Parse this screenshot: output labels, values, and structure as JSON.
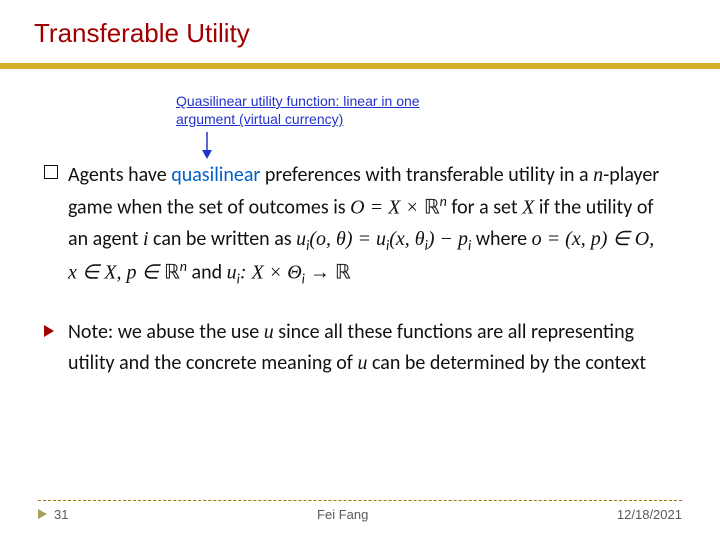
{
  "colors": {
    "title": "#a00000",
    "gold_bar": "#d6af2e",
    "annotation": "#2233cc",
    "quasilinear": "#0060c8",
    "dash": "#b07000",
    "footer_text": "#5a5a5a",
    "background": "#ffffff"
  },
  "title": "Transferable Utility",
  "annotation": "Quasilinear utility function: linear in one\nargument (virtual currency)",
  "arrow": {
    "color": "#2233cc",
    "length": 24,
    "head_size": 6
  },
  "bullets": [
    {
      "marker": "square",
      "runs": [
        {
          "t": "Agents have "
        },
        {
          "t": "quasilinear",
          "cls": "quasi"
        },
        {
          "t": " preferences with transferable utility in a "
        },
        {
          "t": "n",
          "cls": "math"
        },
        {
          "t": "-player game when the set of outcomes is "
        },
        {
          "t": "O = X × ",
          "cls": "math"
        },
        {
          "t": "ℝ",
          "cls": "mathup"
        },
        {
          "t": "n",
          "cls": "sup"
        },
        {
          "t": " for a set "
        },
        {
          "t": "X",
          "cls": "math"
        },
        {
          "t": " if the utility of an agent "
        },
        {
          "t": "i",
          "cls": "math"
        },
        {
          "t": " can be written as "
        },
        {
          "t": "u",
          "cls": "math"
        },
        {
          "t": "i",
          "cls": "sub"
        },
        {
          "t": "(o, θ) = u",
          "cls": "math"
        },
        {
          "t": "i",
          "cls": "sub"
        },
        {
          "t": "(x, θ",
          "cls": "math"
        },
        {
          "t": "i",
          "cls": "sub"
        },
        {
          "t": ") − p",
          "cls": "math"
        },
        {
          "t": "i",
          "cls": "sub"
        },
        {
          "t": " where "
        },
        {
          "t": "o = (x, p) ∈ O, x ∈ X, p ∈ ",
          "cls": "math"
        },
        {
          "t": "ℝ",
          "cls": "mathup"
        },
        {
          "t": "n",
          "cls": "sup"
        },
        {
          "t": " and "
        },
        {
          "t": "u",
          "cls": "math"
        },
        {
          "t": "i",
          "cls": "sub"
        },
        {
          "t": ": X × Θ",
          "cls": "math"
        },
        {
          "t": "i",
          "cls": "sub"
        },
        {
          "t": " → ",
          "cls": "math"
        },
        {
          "t": "ℝ",
          "cls": "mathup"
        }
      ]
    },
    {
      "marker": "triangle",
      "runs": [
        {
          "t": "Note: we abuse the use "
        },
        {
          "t": "u",
          "cls": "math"
        },
        {
          "t": " since all these functions are all representing utility and the concrete meaning of "
        },
        {
          "t": "u",
          "cls": "math"
        },
        {
          "t": " can be determined by the context"
        }
      ]
    }
  ],
  "footer": {
    "slide_number": "31",
    "center": "Fei Fang",
    "date": "12/18/2021",
    "triangle_color": "#a9a060"
  },
  "typography": {
    "title_fontsize": 26,
    "body_fontsize": 20,
    "annotation_fontsize": 14,
    "footer_fontsize": 13
  }
}
